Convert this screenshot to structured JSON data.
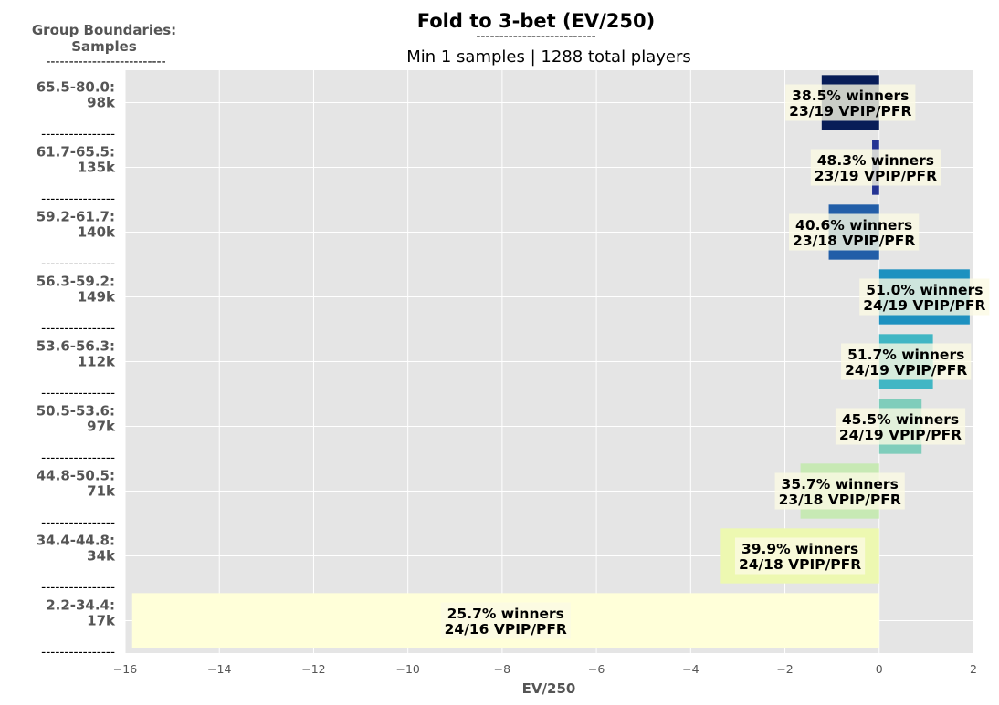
{
  "chart_data": {
    "type": "bar",
    "orientation": "horizontal",
    "title": "Fold to 3-bet (EV/250)",
    "title_underline": "--------------------------",
    "subtitle": "Min 1 samples | 1288 total players",
    "side_header": [
      "Group Boundaries:",
      "Samples",
      "--------------------------"
    ],
    "group_separator": "----------------",
    "xlabel": "EV/250",
    "xlim": [
      -16,
      2
    ],
    "xticks": [
      -16,
      -14,
      -12,
      -10,
      -8,
      -6,
      -4,
      -2,
      0,
      2
    ],
    "xtick_labels": [
      "−16",
      "−14",
      "−12",
      "−10",
      "−8",
      "−6",
      "−4",
      "−2",
      "0",
      "2"
    ],
    "grid": true,
    "colors": {
      "plot_bg": "#e5e5e5",
      "grid": "#ffffff",
      "label_box": "#fbfae3"
    },
    "groups": [
      {
        "boundary": "65.5-80.0:",
        "samples": "98k",
        "value": -1.22,
        "winners": "38.5% winners",
        "vpip_pfr": "23/19 VPIP/PFR",
        "color": "#081d58"
      },
      {
        "boundary": "61.7-65.5:",
        "samples": "135k",
        "value": -0.15,
        "winners": "48.3% winners",
        "vpip_pfr": "23/19 VPIP/PFR",
        "color": "#253494"
      },
      {
        "boundary": "59.2-61.7:",
        "samples": "140k",
        "value": -1.07,
        "winners": "40.6% winners",
        "vpip_pfr": "23/18 VPIP/PFR",
        "color": "#225ea8"
      },
      {
        "boundary": "56.3-59.2:",
        "samples": "149k",
        "value": 1.92,
        "winners": "51.0% winners",
        "vpip_pfr": "24/19 VPIP/PFR",
        "color": "#1d91c0"
      },
      {
        "boundary": "53.6-56.3:",
        "samples": "112k",
        "value": 1.14,
        "winners": "51.7% winners",
        "vpip_pfr": "24/19 VPIP/PFR",
        "color": "#41b6c4"
      },
      {
        "boundary": "50.5-53.6:",
        "samples": "97k",
        "value": 0.9,
        "winners": "45.5% winners",
        "vpip_pfr": "24/19 VPIP/PFR",
        "color": "#7fcdbb"
      },
      {
        "boundary": "44.8-50.5:",
        "samples": "71k",
        "value": -1.67,
        "winners": "35.7% winners",
        "vpip_pfr": "23/18 VPIP/PFR",
        "color": "#c7e9b4"
      },
      {
        "boundary": "34.4-44.8:",
        "samples": "34k",
        "value": -3.36,
        "winners": "39.9% winners",
        "vpip_pfr": "24/18 VPIP/PFR",
        "color": "#edf8b1"
      },
      {
        "boundary": "2.2-34.4:",
        "samples": "17k",
        "value": -15.85,
        "winners": "25.7% winners",
        "vpip_pfr": "24/16 VPIP/PFR",
        "color": "#ffffd9"
      }
    ]
  }
}
